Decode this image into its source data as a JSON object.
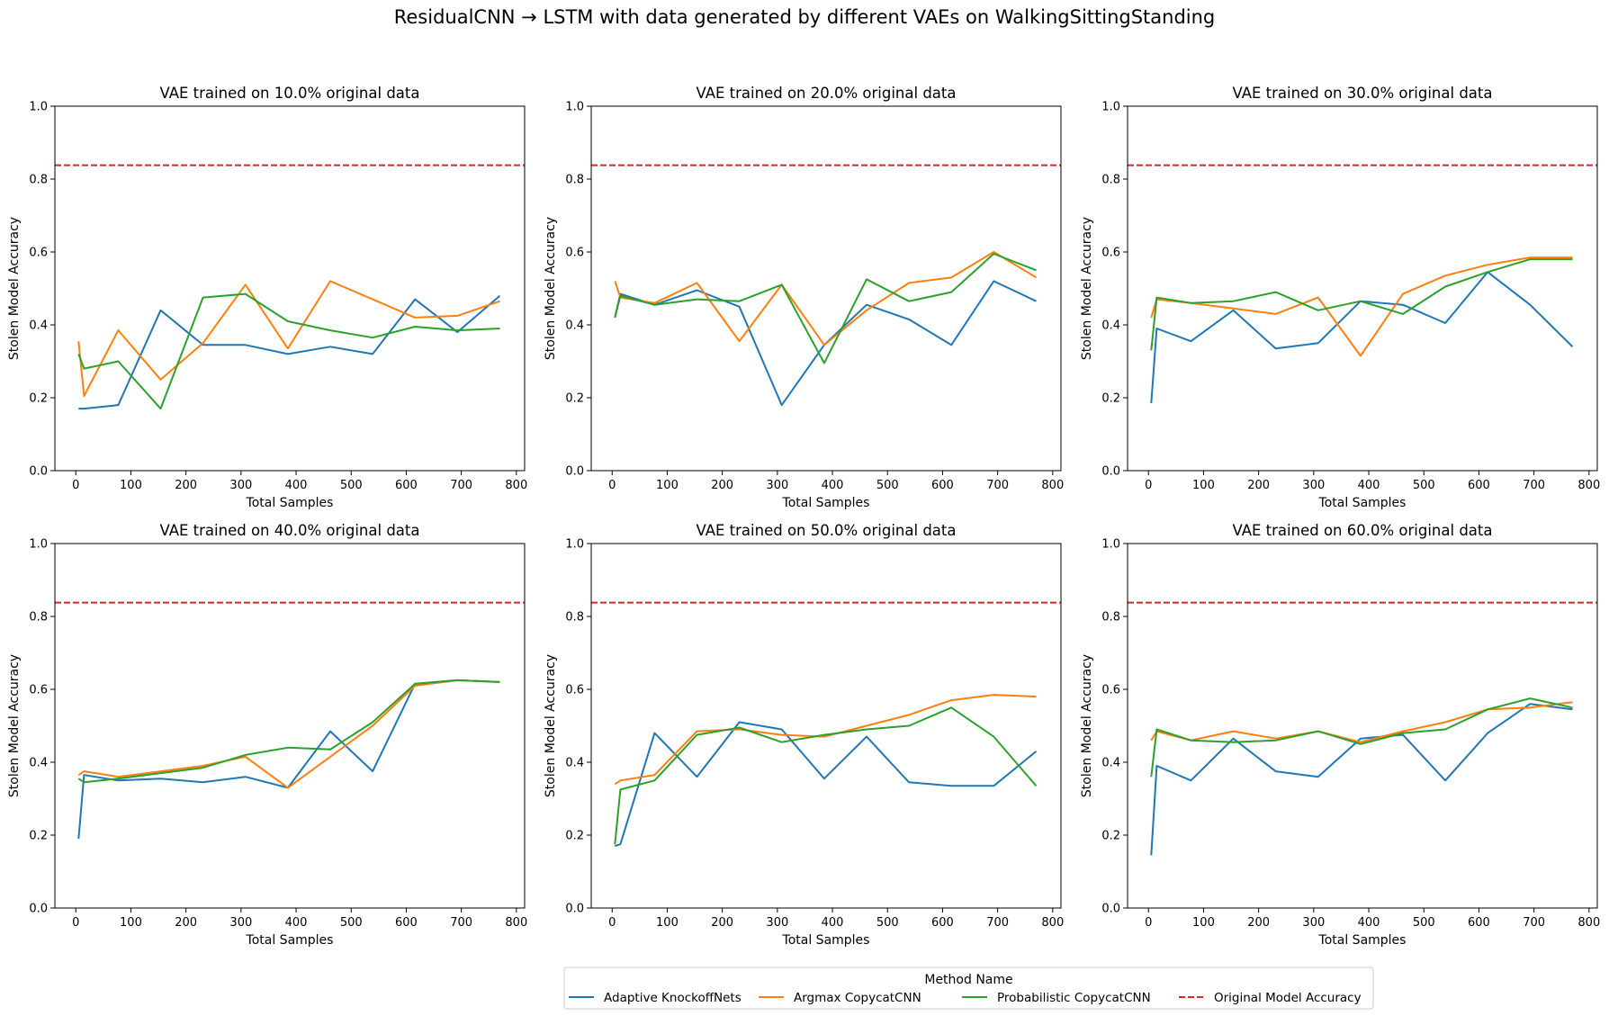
{
  "figure_title": "ResidualCNN → LSTM with data generated by different VAEs on WalkingSittingStanding",
  "colors": {
    "Adaptive KnockoffNets": "#1f77b4",
    "Argmax CopycatCNN": "#ff7f0e",
    "Probabilistic CopycatCNN": "#2ca02c",
    "Original Model Accuracy": "#d62728"
  },
  "legend": {
    "title": "Method Name",
    "placement": "bottom-center",
    "entries": [
      "Adaptive KnockoffNets",
      "Argmax CopycatCNN",
      "Probabilistic CopycatCNN",
      "Original Model Accuracy"
    ]
  },
  "chart_data": [
    {
      "type": "line",
      "title": "VAE trained on 10.0% original data",
      "xlabel": "Total Samples",
      "ylabel": "Stolen Model Accuracy",
      "xlim": [
        -38,
        815
      ],
      "ylim": [
        0,
        1.0
      ],
      "xticks": [
        0,
        100,
        200,
        300,
        400,
        500,
        600,
        700,
        800
      ],
      "yticks": [
        0.0,
        0.2,
        0.4,
        0.6,
        0.8,
        1.0
      ],
      "hline": {
        "name": "Original Model Accuracy",
        "y": 0.838
      },
      "x": [
        5,
        15,
        77,
        154,
        231,
        308,
        385,
        462,
        539,
        616,
        693,
        770
      ],
      "series": [
        {
          "name": "Adaptive KnockoffNets",
          "values": [
            0.17,
            0.17,
            0.18,
            0.44,
            0.345,
            0.345,
            0.32,
            0.34,
            0.32,
            0.47,
            0.38,
            0.48
          ]
        },
        {
          "name": "Argmax CopycatCNN",
          "values": [
            0.355,
            0.205,
            0.385,
            0.25,
            0.35,
            0.51,
            0.335,
            0.52,
            0.47,
            0.42,
            0.425,
            0.465
          ]
        },
        {
          "name": "Probabilistic CopycatCNN",
          "values": [
            0.32,
            0.28,
            0.3,
            0.17,
            0.475,
            0.485,
            0.41,
            0.385,
            0.365,
            0.395,
            0.385,
            0.39
          ]
        }
      ]
    },
    {
      "type": "line",
      "title": "VAE trained on 20.0% original data",
      "xlabel": "Total Samples",
      "ylabel": "Stolen Model Accuracy",
      "xlim": [
        -38,
        815
      ],
      "ylim": [
        0,
        1.0
      ],
      "xticks": [
        0,
        100,
        200,
        300,
        400,
        500,
        600,
        700,
        800
      ],
      "yticks": [
        0.0,
        0.2,
        0.4,
        0.6,
        0.8,
        1.0
      ],
      "hline": {
        "name": "Original Model Accuracy",
        "y": 0.838
      },
      "x": [
        5,
        15,
        77,
        154,
        231,
        308,
        385,
        462,
        539,
        616,
        693,
        770
      ],
      "series": [
        {
          "name": "Adaptive KnockoffNets",
          "values": [
            0.42,
            0.485,
            0.455,
            0.495,
            0.45,
            0.18,
            0.345,
            0.455,
            0.415,
            0.345,
            0.52,
            0.465
          ]
        },
        {
          "name": "Argmax CopycatCNN",
          "values": [
            0.52,
            0.475,
            0.46,
            0.515,
            0.355,
            0.51,
            0.345,
            0.44,
            0.515,
            0.53,
            0.6,
            0.53
          ]
        },
        {
          "name": "Probabilistic CopycatCNN",
          "values": [
            0.42,
            0.48,
            0.455,
            0.47,
            0.465,
            0.51,
            0.295,
            0.525,
            0.465,
            0.49,
            0.595,
            0.55
          ]
        }
      ]
    },
    {
      "type": "line",
      "title": "VAE trained on 30.0% original data",
      "xlabel": "Total Samples",
      "ylabel": "Stolen Model Accuracy",
      "xlim": [
        -38,
        815
      ],
      "ylim": [
        0,
        1.0
      ],
      "xticks": [
        0,
        100,
        200,
        300,
        400,
        500,
        600,
        700,
        800
      ],
      "yticks": [
        0.0,
        0.2,
        0.4,
        0.6,
        0.8,
        1.0
      ],
      "hline": {
        "name": "Original Model Accuracy",
        "y": 0.838
      },
      "x": [
        5,
        15,
        77,
        154,
        231,
        308,
        385,
        462,
        539,
        616,
        693,
        770
      ],
      "series": [
        {
          "name": "Adaptive KnockoffNets",
          "values": [
            0.185,
            0.39,
            0.355,
            0.44,
            0.335,
            0.35,
            0.465,
            0.455,
            0.405,
            0.545,
            0.455,
            0.34
          ]
        },
        {
          "name": "Argmax CopycatCNN",
          "values": [
            0.42,
            0.47,
            0.46,
            0.445,
            0.43,
            0.475,
            0.315,
            0.485,
            0.535,
            0.565,
            0.585,
            0.585
          ]
        },
        {
          "name": "Probabilistic CopycatCNN",
          "values": [
            0.33,
            0.475,
            0.46,
            0.465,
            0.49,
            0.44,
            0.465,
            0.43,
            0.505,
            0.545,
            0.58,
            0.58
          ]
        }
      ]
    },
    {
      "type": "line",
      "title": "VAE trained on 40.0% original data",
      "xlabel": "Total Samples",
      "ylabel": "Stolen Model Accuracy",
      "xlim": [
        -38,
        815
      ],
      "ylim": [
        0,
        1.0
      ],
      "xticks": [
        0,
        100,
        200,
        300,
        400,
        500,
        600,
        700,
        800
      ],
      "yticks": [
        0.0,
        0.2,
        0.4,
        0.6,
        0.8,
        1.0
      ],
      "hline": {
        "name": "Original Model Accuracy",
        "y": 0.838
      },
      "x": [
        5,
        15,
        77,
        154,
        231,
        308,
        385,
        462,
        539,
        616,
        693,
        770
      ],
      "series": [
        {
          "name": "Adaptive KnockoffNets",
          "values": [
            0.19,
            0.365,
            0.35,
            0.355,
            0.345,
            0.36,
            0.33,
            0.485,
            0.375,
            0.615,
            0.625,
            0.62
          ]
        },
        {
          "name": "Argmax CopycatCNN",
          "values": [
            0.365,
            0.375,
            0.36,
            0.375,
            0.39,
            0.415,
            0.33,
            0.415,
            0.5,
            0.61,
            0.625,
            0.62
          ]
        },
        {
          "name": "Probabilistic CopycatCNN",
          "values": [
            0.355,
            0.345,
            0.355,
            0.37,
            0.385,
            0.42,
            0.44,
            0.435,
            0.51,
            0.615,
            0.625,
            0.62
          ]
        }
      ]
    },
    {
      "type": "line",
      "title": "VAE trained on 50.0% original data",
      "xlabel": "Total Samples",
      "ylabel": "Stolen Model Accuracy",
      "xlim": [
        -38,
        815
      ],
      "ylim": [
        0,
        1.0
      ],
      "xticks": [
        0,
        100,
        200,
        300,
        400,
        500,
        600,
        700,
        800
      ],
      "yticks": [
        0.0,
        0.2,
        0.4,
        0.6,
        0.8,
        1.0
      ],
      "hline": {
        "name": "Original Model Accuracy",
        "y": 0.838
      },
      "x": [
        5,
        15,
        77,
        154,
        231,
        308,
        385,
        462,
        539,
        616,
        693,
        770
      ],
      "series": [
        {
          "name": "Adaptive KnockoffNets",
          "values": [
            0.17,
            0.175,
            0.48,
            0.36,
            0.51,
            0.49,
            0.355,
            0.47,
            0.345,
            0.335,
            0.335,
            0.43
          ]
        },
        {
          "name": "Argmax CopycatCNN",
          "values": [
            0.34,
            0.35,
            0.365,
            0.485,
            0.49,
            0.475,
            0.47,
            0.5,
            0.53,
            0.57,
            0.585,
            0.58
          ]
        },
        {
          "name": "Probabilistic CopycatCNN",
          "values": [
            0.175,
            0.325,
            0.35,
            0.475,
            0.495,
            0.455,
            0.475,
            0.49,
            0.5,
            0.55,
            0.47,
            0.335
          ]
        }
      ]
    },
    {
      "type": "line",
      "title": "VAE trained on 60.0% original data",
      "xlabel": "Total Samples",
      "ylabel": "Stolen Model Accuracy",
      "xlim": [
        -38,
        815
      ],
      "ylim": [
        0,
        1.0
      ],
      "xticks": [
        0,
        100,
        200,
        300,
        400,
        500,
        600,
        700,
        800
      ],
      "yticks": [
        0.0,
        0.2,
        0.4,
        0.6,
        0.8,
        1.0
      ],
      "hline": {
        "name": "Original Model Accuracy",
        "y": 0.838
      },
      "x": [
        5,
        15,
        77,
        154,
        231,
        308,
        385,
        462,
        539,
        616,
        693,
        770
      ],
      "series": [
        {
          "name": "Adaptive KnockoffNets",
          "values": [
            0.145,
            0.39,
            0.35,
            0.465,
            0.375,
            0.36,
            0.465,
            0.475,
            0.35,
            0.48,
            0.56,
            0.545
          ]
        },
        {
          "name": "Argmax CopycatCNN",
          "values": [
            0.46,
            0.485,
            0.46,
            0.485,
            0.465,
            0.485,
            0.455,
            0.485,
            0.51,
            0.545,
            0.55,
            0.565
          ]
        },
        {
          "name": "Probabilistic CopycatCNN",
          "values": [
            0.36,
            0.49,
            0.46,
            0.455,
            0.46,
            0.485,
            0.45,
            0.48,
            0.49,
            0.545,
            0.575,
            0.55
          ]
        }
      ]
    }
  ]
}
